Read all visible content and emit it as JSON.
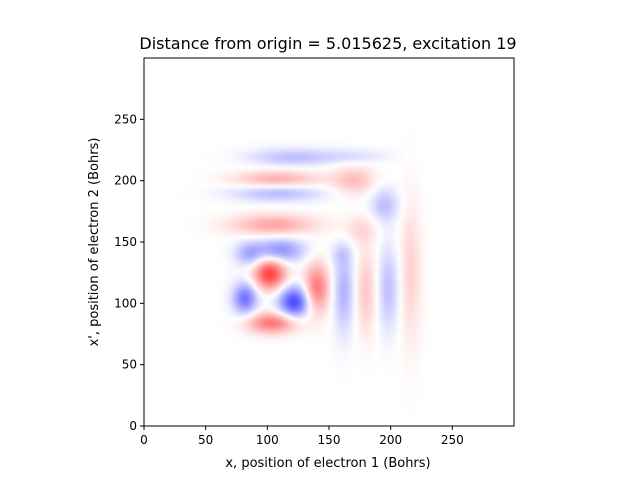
{
  "chart_data": {
    "type": "heatmap",
    "title": "Distance from origin = 5.015625, excitation 19",
    "xlabel": "x, position of electron 1 (Bohrs)",
    "ylabel": "x', position of electron 2 (Bohrs)",
    "xlim": [
      0,
      300
    ],
    "ylim": [
      0,
      300
    ],
    "x_ticks": [
      0,
      50,
      100,
      150,
      200,
      250
    ],
    "y_ticks": [
      0,
      50,
      100,
      150,
      200,
      250
    ],
    "colormap": "bwr",
    "colors": {
      "positive": "#ff0000",
      "negative": "#0000ff",
      "zero": "#ffffff"
    },
    "blobs": [
      {
        "x": 102,
        "y": 124,
        "amp": 0.75,
        "sx": 9,
        "sy": 9
      },
      {
        "x": 122,
        "y": 101,
        "amp": -0.72,
        "sx": 9,
        "sy": 9
      },
      {
        "x": 82,
        "y": 104,
        "amp": -0.55,
        "sx": 7,
        "sy": 9
      },
      {
        "x": 110,
        "y": 143,
        "amp": -0.45,
        "sx": 14,
        "sy": 7
      },
      {
        "x": 85,
        "y": 140,
        "amp": -0.3,
        "sx": 8,
        "sy": 7
      },
      {
        "x": 104,
        "y": 84,
        "amp": 0.55,
        "sx": 14,
        "sy": 6
      },
      {
        "x": 140,
        "y": 112,
        "amp": 0.55,
        "sx": 7,
        "sy": 14
      },
      {
        "x": 105,
        "y": 164,
        "amp": 0.35,
        "sx": 24,
        "sy": 6
      },
      {
        "x": 108,
        "y": 190,
        "amp": -0.28,
        "sx": 26,
        "sy": 5
      },
      {
        "x": 108,
        "y": 201,
        "amp": 0.32,
        "sx": 24,
        "sy": 5
      },
      {
        "x": 120,
        "y": 219,
        "amp": -0.25,
        "sx": 24,
        "sy": 5
      },
      {
        "x": 162,
        "y": 110,
        "amp": -0.3,
        "sx": 6,
        "sy": 24
      },
      {
        "x": 180,
        "y": 110,
        "amp": 0.22,
        "sx": 6,
        "sy": 24
      },
      {
        "x": 198,
        "y": 112,
        "amp": -0.25,
        "sx": 6,
        "sy": 24
      },
      {
        "x": 216,
        "y": 125,
        "amp": 0.18,
        "sx": 6,
        "sy": 40
      },
      {
        "x": 170,
        "y": 200,
        "amp": 0.25,
        "sx": 12,
        "sy": 8
      },
      {
        "x": 195,
        "y": 180,
        "amp": -0.25,
        "sx": 8,
        "sy": 10
      },
      {
        "x": 175,
        "y": 160,
        "amp": 0.15,
        "sx": 10,
        "sy": 8
      },
      {
        "x": 170,
        "y": 220,
        "amp": -0.12,
        "sx": 20,
        "sy": 4
      },
      {
        "x": 160,
        "y": 140,
        "amp": -0.12,
        "sx": 6,
        "sy": 6
      }
    ]
  }
}
